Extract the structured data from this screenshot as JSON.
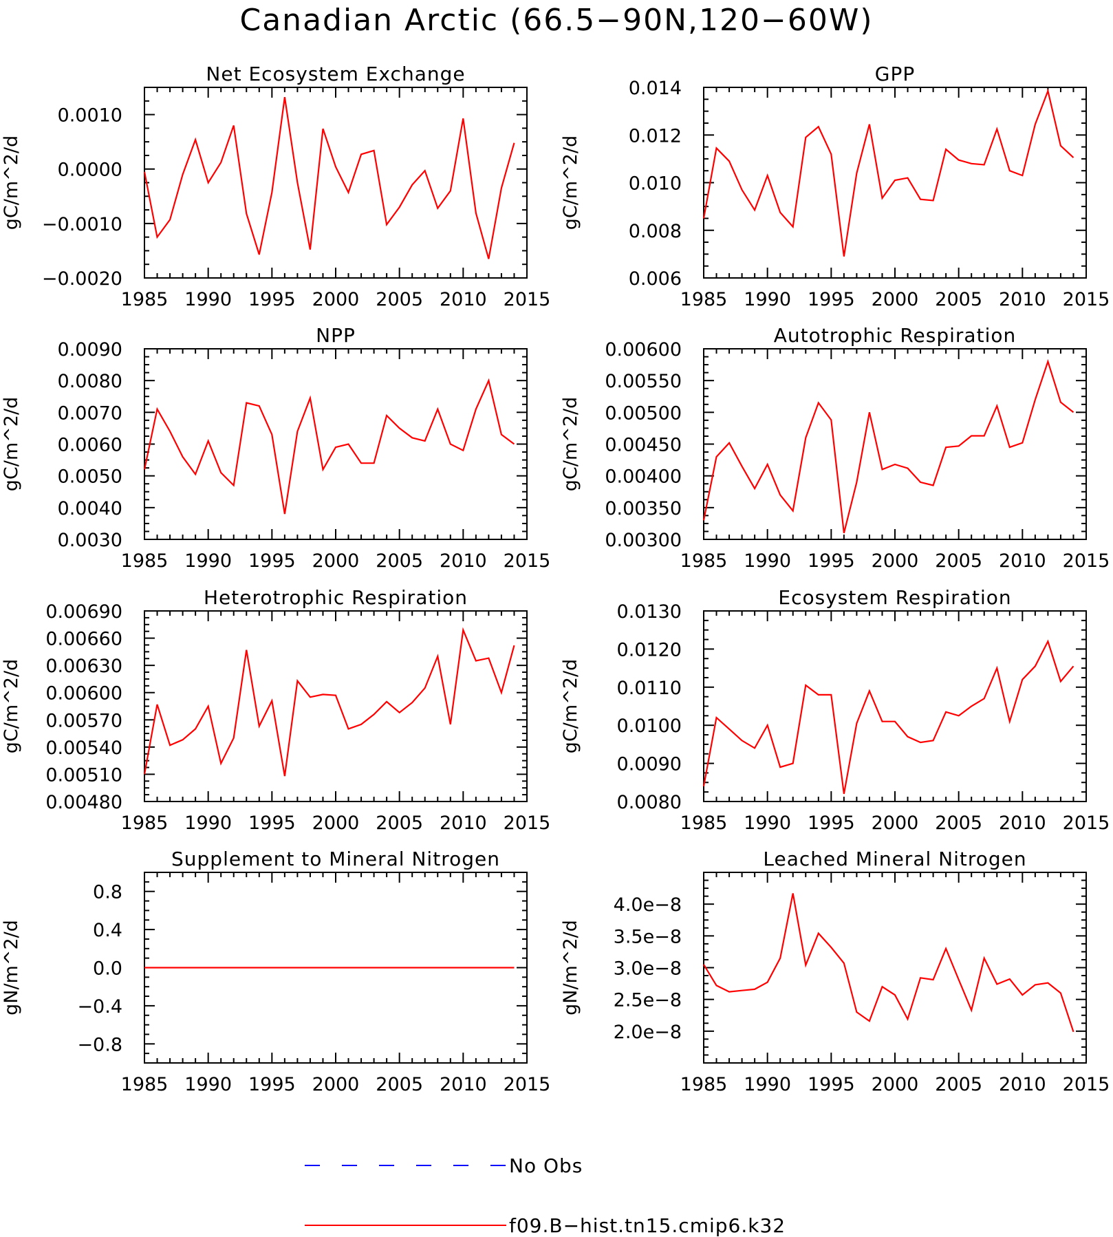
{
  "figure": {
    "title": "Canadian Arctic (66.5−90N,120−60W)"
  },
  "legend": {
    "placement": "bottom-center",
    "entries": [
      {
        "label": "No Obs",
        "color": "#0000ff",
        "style": "dashed"
      },
      {
        "label": "f09.B−hist.tn15.cmip6.k32",
        "color": "#ff0000",
        "style": "solid"
      }
    ]
  },
  "chart_data": [
    {
      "type": "line",
      "title": "Net Ecosystem Exchange",
      "ylabel": "gC/m^2/d",
      "xlim": [
        1985,
        2015
      ],
      "ylim": [
        -0.002,
        0.0015
      ],
      "xticks": [
        "1985",
        "1990",
        "1995",
        "2000",
        "2005",
        "2010",
        "2015"
      ],
      "yticks": [
        {
          "v": 0.001,
          "label": "0.0010"
        },
        {
          "v": 0.0,
          "label": "0.0000"
        },
        {
          "v": -0.001,
          "label": "−0.0010"
        },
        {
          "v": -0.002,
          "label": "−0.0020"
        }
      ],
      "x": [
        1985,
        1986,
        1987,
        1988,
        1989,
        1990,
        1991,
        1992,
        1993,
        1994,
        1995,
        1996,
        1997,
        1998,
        1999,
        2000,
        2001,
        2002,
        2003,
        2004,
        2005,
        2006,
        2007,
        2008,
        2009,
        2010,
        2011,
        2012,
        2013,
        2014
      ],
      "series": [
        {
          "name": "f09.B−hist.tn15.cmip6.k32",
          "color": "#ff0000",
          "values": [
            -5e-05,
            -0.00125,
            -0.00093,
            -0.0001,
            0.00054,
            -0.00025,
            0.00012,
            0.0008,
            -0.00082,
            -0.00157,
            -0.00043,
            0.00132,
            -0.00025,
            -0.00148,
            0.00074,
            4e-05,
            -0.00043,
            0.00027,
            0.00034,
            -0.00102,
            -0.0007,
            -0.00029,
            -3e-05,
            -0.00072,
            -0.0004,
            0.00093,
            -0.00081,
            -0.00165,
            -0.00035,
            0.00048
          ]
        }
      ]
    },
    {
      "type": "line",
      "title": "GPP",
      "ylabel": "gC/m^2/d",
      "xlim": [
        1985,
        2015
      ],
      "ylim": [
        0.006,
        0.014
      ],
      "xticks": [
        "1985",
        "1990",
        "1995",
        "2000",
        "2005",
        "2010",
        "2015"
      ],
      "yticks": [
        {
          "v": 0.014,
          "label": "0.014"
        },
        {
          "v": 0.012,
          "label": "0.012"
        },
        {
          "v": 0.01,
          "label": "0.010"
        },
        {
          "v": 0.008,
          "label": "0.008"
        },
        {
          "v": 0.006,
          "label": "0.006"
        }
      ],
      "x": [
        1985,
        1986,
        1987,
        1988,
        1989,
        1990,
        1991,
        1992,
        1993,
        1994,
        1995,
        1996,
        1997,
        1998,
        1999,
        2000,
        2001,
        2002,
        2003,
        2004,
        2005,
        2006,
        2007,
        2008,
        2009,
        2010,
        2011,
        2012,
        2013,
        2014
      ],
      "series": [
        {
          "name": "f09.B−hist.tn15.cmip6.k32",
          "color": "#ff0000",
          "values": [
            0.0085,
            0.01145,
            0.0109,
            0.0097,
            0.00885,
            0.0103,
            0.00875,
            0.00815,
            0.0119,
            0.01235,
            0.0112,
            0.0069,
            0.0104,
            0.01245,
            0.00935,
            0.0101,
            0.0102,
            0.0093,
            0.00925,
            0.0114,
            0.01095,
            0.0108,
            0.01075,
            0.01225,
            0.0105,
            0.0103,
            0.01245,
            0.01385,
            0.01155,
            0.01105
          ]
        }
      ]
    },
    {
      "type": "line",
      "title": "NPP",
      "ylabel": "gC/m^2/d",
      "xlim": [
        1985,
        2015
      ],
      "ylim": [
        0.003,
        0.009
      ],
      "xticks": [
        "1985",
        "1990",
        "1995",
        "2000",
        "2005",
        "2010",
        "2015"
      ],
      "yticks": [
        {
          "v": 0.009,
          "label": "0.0090"
        },
        {
          "v": 0.008,
          "label": "0.0080"
        },
        {
          "v": 0.007,
          "label": "0.0070"
        },
        {
          "v": 0.006,
          "label": "0.0060"
        },
        {
          "v": 0.005,
          "label": "0.0050"
        },
        {
          "v": 0.004,
          "label": "0.0040"
        },
        {
          "v": 0.003,
          "label": "0.0030"
        }
      ],
      "x": [
        1985,
        1986,
        1987,
        1988,
        1989,
        1990,
        1991,
        1992,
        1993,
        1994,
        1995,
        1996,
        1997,
        1998,
        1999,
        2000,
        2001,
        2002,
        2003,
        2004,
        2005,
        2006,
        2007,
        2008,
        2009,
        2010,
        2011,
        2012,
        2013,
        2014
      ],
      "series": [
        {
          "name": "f09.B−hist.tn15.cmip6.k32",
          "color": "#ff0000",
          "values": [
            0.0052,
            0.0071,
            0.0064,
            0.0056,
            0.00505,
            0.0061,
            0.0051,
            0.0047,
            0.0073,
            0.0072,
            0.0063,
            0.0038,
            0.0064,
            0.00745,
            0.0052,
            0.0059,
            0.006,
            0.0054,
            0.0054,
            0.0069,
            0.0065,
            0.0062,
            0.0061,
            0.0071,
            0.006,
            0.0058,
            0.0071,
            0.008,
            0.0063,
            0.006
          ]
        }
      ]
    },
    {
      "type": "line",
      "title": "Autotrophic Respiration",
      "ylabel": "gC/m^2/d",
      "xlim": [
        1985,
        2015
      ],
      "ylim": [
        0.003,
        0.006
      ],
      "xticks": [
        "1985",
        "1990",
        "1995",
        "2000",
        "2005",
        "2010",
        "2015"
      ],
      "yticks": [
        {
          "v": 0.006,
          "label": "0.00600"
        },
        {
          "v": 0.0055,
          "label": "0.00550"
        },
        {
          "v": 0.005,
          "label": "0.00500"
        },
        {
          "v": 0.0045,
          "label": "0.00450"
        },
        {
          "v": 0.004,
          "label": "0.00400"
        },
        {
          "v": 0.0035,
          "label": "0.00350"
        },
        {
          "v": 0.003,
          "label": "0.00300"
        }
      ],
      "x": [
        1985,
        1986,
        1987,
        1988,
        1989,
        1990,
        1991,
        1992,
        1993,
        1994,
        1995,
        1996,
        1997,
        1998,
        1999,
        2000,
        2001,
        2002,
        2003,
        2004,
        2005,
        2006,
        2007,
        2008,
        2009,
        2010,
        2011,
        2012,
        2013,
        2014
      ],
      "series": [
        {
          "name": "f09.B−hist.tn15.cmip6.k32",
          "color": "#ff0000",
          "values": [
            0.0033,
            0.0043,
            0.00452,
            0.00415,
            0.0038,
            0.00418,
            0.0037,
            0.00345,
            0.0046,
            0.00515,
            0.00488,
            0.0031,
            0.0039,
            0.005,
            0.0041,
            0.00418,
            0.00412,
            0.0039,
            0.00385,
            0.00445,
            0.00447,
            0.00463,
            0.00463,
            0.0051,
            0.00445,
            0.00452,
            0.0052,
            0.0058,
            0.00516,
            0.005
          ]
        }
      ]
    },
    {
      "type": "line",
      "title": "Heterotrophic Respiration",
      "ylabel": "gC/m^2/d",
      "xlim": [
        1985,
        2015
      ],
      "ylim": [
        0.0048,
        0.0069
      ],
      "xticks": [
        "1985",
        "1990",
        "1995",
        "2000",
        "2005",
        "2010",
        "2015"
      ],
      "yticks": [
        {
          "v": 0.0069,
          "label": "0.00690"
        },
        {
          "v": 0.0066,
          "label": "0.00660"
        },
        {
          "v": 0.0063,
          "label": "0.00630"
        },
        {
          "v": 0.006,
          "label": "0.00600"
        },
        {
          "v": 0.0057,
          "label": "0.00570"
        },
        {
          "v": 0.0054,
          "label": "0.00540"
        },
        {
          "v": 0.0051,
          "label": "0.00510"
        },
        {
          "v": 0.0048,
          "label": "0.00480"
        }
      ],
      "x": [
        1985,
        1986,
        1987,
        1988,
        1989,
        1990,
        1991,
        1992,
        1993,
        1994,
        1995,
        1996,
        1997,
        1998,
        1999,
        2000,
        2001,
        2002,
        2003,
        2004,
        2005,
        2006,
        2007,
        2008,
        2009,
        2010,
        2011,
        2012,
        2013,
        2014
      ],
      "series": [
        {
          "name": "f09.B−hist.tn15.cmip6.k32",
          "color": "#ff0000",
          "values": [
            0.0051,
            0.00587,
            0.00542,
            0.00548,
            0.0056,
            0.00585,
            0.00522,
            0.0055,
            0.00647,
            0.00563,
            0.00591,
            0.00508,
            0.00613,
            0.00595,
            0.00598,
            0.00597,
            0.0056,
            0.00565,
            0.00576,
            0.0059,
            0.00578,
            0.00589,
            0.00605,
            0.0064,
            0.00565,
            0.00669,
            0.00635,
            0.00638,
            0.006,
            0.00652
          ]
        }
      ]
    },
    {
      "type": "line",
      "title": "Ecosystem Respiration",
      "ylabel": "gC/m^2/d",
      "xlim": [
        1985,
        2015
      ],
      "ylim": [
        0.008,
        0.013
      ],
      "xticks": [
        "1985",
        "1990",
        "1995",
        "2000",
        "2005",
        "2010",
        "2015"
      ],
      "yticks": [
        {
          "v": 0.013,
          "label": "0.0130"
        },
        {
          "v": 0.012,
          "label": "0.0120"
        },
        {
          "v": 0.011,
          "label": "0.0110"
        },
        {
          "v": 0.01,
          "label": "0.0100"
        },
        {
          "v": 0.009,
          "label": "0.0090"
        },
        {
          "v": 0.008,
          "label": "0.0080"
        }
      ],
      "x": [
        1985,
        1986,
        1987,
        1988,
        1989,
        1990,
        1991,
        1992,
        1993,
        1994,
        1995,
        1996,
        1997,
        1998,
        1999,
        2000,
        2001,
        2002,
        2003,
        2004,
        2005,
        2006,
        2007,
        2008,
        2009,
        2010,
        2011,
        2012,
        2013,
        2014
      ],
      "series": [
        {
          "name": "f09.B−hist.tn15.cmip6.k32",
          "color": "#ff0000",
          "values": [
            0.0084,
            0.0102,
            0.0099,
            0.0096,
            0.0094,
            0.01,
            0.0089,
            0.009,
            0.01105,
            0.0108,
            0.0108,
            0.0082,
            0.01005,
            0.0109,
            0.0101,
            0.0101,
            0.0097,
            0.00955,
            0.0096,
            0.01035,
            0.01025,
            0.0105,
            0.0107,
            0.0115,
            0.0101,
            0.0112,
            0.01155,
            0.0122,
            0.01115,
            0.01155
          ]
        }
      ]
    },
    {
      "type": "line",
      "title": "Supplement to Mineral Nitrogen",
      "ylabel": "gN/m^2/d",
      "xlim": [
        1985,
        2015
      ],
      "ylim": [
        -1.0,
        1.0
      ],
      "xticks": [
        "1985",
        "1990",
        "1995",
        "2000",
        "2005",
        "2010",
        "2015"
      ],
      "yticks": [
        {
          "v": 0.8,
          "label": "0.8"
        },
        {
          "v": 0.4,
          "label": "0.4"
        },
        {
          "v": 0.0,
          "label": "0.0"
        },
        {
          "v": -0.4,
          "label": "−0.4"
        },
        {
          "v": -0.8,
          "label": "−0.8"
        }
      ],
      "x": [
        1985,
        1986,
        1987,
        1988,
        1989,
        1990,
        1991,
        1992,
        1993,
        1994,
        1995,
        1996,
        1997,
        1998,
        1999,
        2000,
        2001,
        2002,
        2003,
        2004,
        2005,
        2006,
        2007,
        2008,
        2009,
        2010,
        2011,
        2012,
        2013,
        2014
      ],
      "series": [
        {
          "name": "f09.B−hist.tn15.cmip6.k32",
          "color": "#ff0000",
          "values": [
            0,
            0,
            0,
            0,
            0,
            0,
            0,
            0,
            0,
            0,
            0,
            0,
            0,
            0,
            0,
            0,
            0,
            0,
            0,
            0,
            0,
            0,
            0,
            0,
            0,
            0,
            0,
            0,
            0,
            0
          ]
        }
      ]
    },
    {
      "type": "line",
      "title": "Leached Mineral Nitrogen",
      "ylabel": "gN/m^2/d",
      "xlim": [
        1985,
        2015
      ],
      "ylim": [
        1.5e-08,
        4.5e-08
      ],
      "xticks": [
        "1985",
        "1990",
        "1995",
        "2000",
        "2005",
        "2010",
        "2015"
      ],
      "yticks": [
        {
          "v": 4e-08,
          "label": "4.0e−8"
        },
        {
          "v": 3.5e-08,
          "label": "3.5e−8"
        },
        {
          "v": 3e-08,
          "label": "3.0e−8"
        },
        {
          "v": 2.5e-08,
          "label": "2.5e−8"
        },
        {
          "v": 2e-08,
          "label": "2.0e−8"
        }
      ],
      "x": [
        1985,
        1986,
        1987,
        1988,
        1989,
        1990,
        1991,
        1992,
        1993,
        1994,
        1995,
        1996,
        1997,
        1998,
        1999,
        2000,
        2001,
        2002,
        2003,
        2004,
        2005,
        2006,
        2007,
        2008,
        2009,
        2010,
        2011,
        2012,
        2013,
        2014
      ],
      "series": [
        {
          "name": "f09.B−hist.tn15.cmip6.k32",
          "color": "#ff0000",
          "values": [
            3.05e-08,
            2.72e-08,
            2.62e-08,
            2.64e-08,
            2.66e-08,
            2.77e-08,
            3.15e-08,
            4.17e-08,
            3.04e-08,
            3.54e-08,
            3.32e-08,
            3.07e-08,
            2.3e-08,
            2.16e-08,
            2.7e-08,
            2.57e-08,
            2.19e-08,
            2.84e-08,
            2.81e-08,
            3.3e-08,
            2.81e-08,
            2.33e-08,
            3.15e-08,
            2.74e-08,
            2.82e-08,
            2.57e-08,
            2.73e-08,
            2.76e-08,
            2.6e-08,
            1.99e-08
          ]
        }
      ]
    }
  ]
}
